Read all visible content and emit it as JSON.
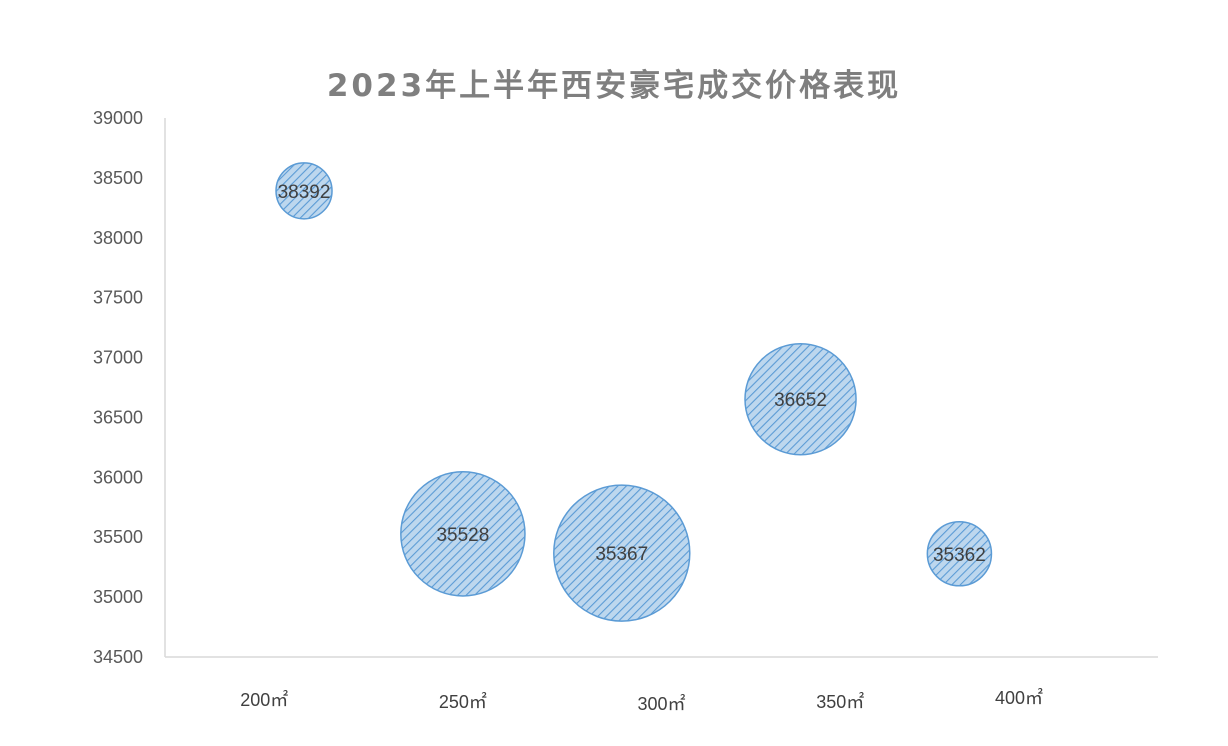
{
  "chart_data": {
    "type": "bubble",
    "title": "2023年上半年西安豪宅成交价格表现",
    "xlabel": "",
    "ylabel": "",
    "ylim": [
      34500,
      39000
    ],
    "ytick_step": 500,
    "x_tick_labels": [
      "200㎡",
      "250㎡",
      "300㎡",
      "350㎡",
      "400㎡"
    ],
    "grid": false,
    "legend": "none",
    "series": [
      {
        "color": "#5b9bd5",
        "fill": "#bdd7ee",
        "points": [
          {
            "x": 1.2,
            "y": 38392,
            "size": 1,
            "label": "38392"
          },
          {
            "x": 2.0,
            "y": 35528,
            "size": 15,
            "label": "35528"
          },
          {
            "x": 2.8,
            "y": 35367,
            "size": 18,
            "label": "35367"
          },
          {
            "x": 3.7,
            "y": 36652,
            "size": 12,
            "label": "36652"
          },
          {
            "x": 4.5,
            "y": 35362,
            "size": 4,
            "label": "35362"
          }
        ]
      }
    ]
  }
}
